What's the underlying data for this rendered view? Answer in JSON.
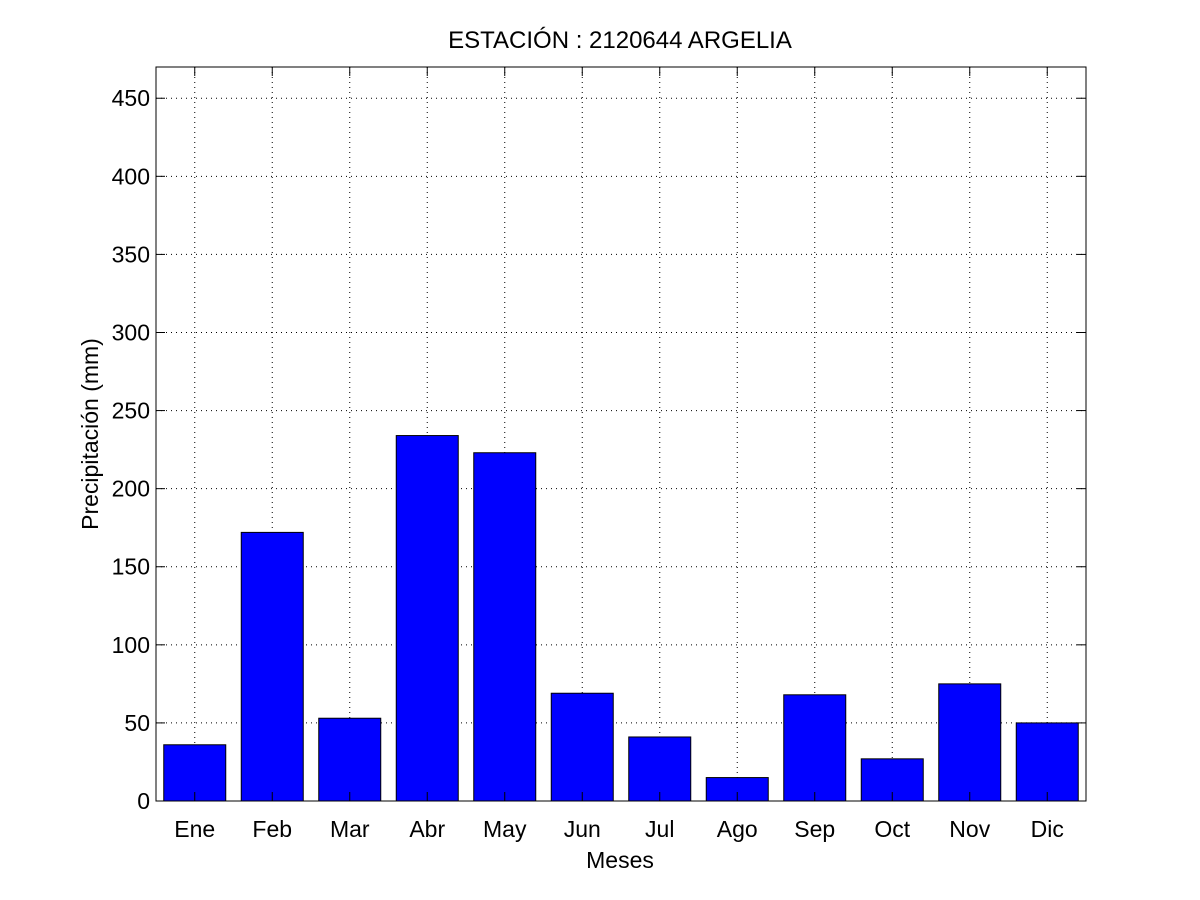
{
  "chart_data": {
    "type": "bar",
    "title": "ESTACIÓN :  2120644  ARGELIA",
    "xlabel": "Meses",
    "ylabel": "Precipitación (mm)",
    "categories": [
      "Ene",
      "Feb",
      "Mar",
      "Abr",
      "May",
      "Jun",
      "Jul",
      "Ago",
      "Sep",
      "Oct",
      "Nov",
      "Dic"
    ],
    "values": [
      36,
      172,
      53,
      234,
      223,
      69,
      41,
      15,
      68,
      27,
      75,
      50
    ],
    "ylim": [
      0,
      470
    ],
    "yticks": [
      0,
      50,
      100,
      150,
      200,
      250,
      300,
      350,
      400,
      450
    ],
    "grid": true,
    "bar_color": "#0000ff"
  }
}
